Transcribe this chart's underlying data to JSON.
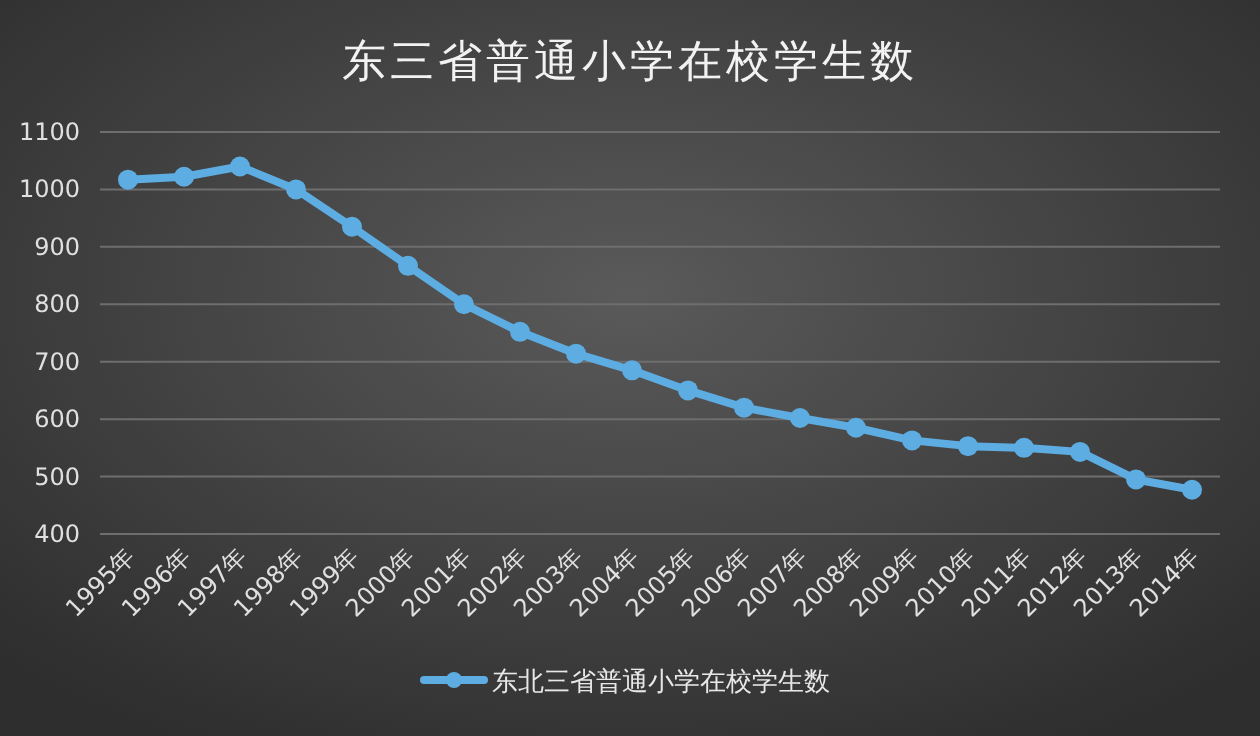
{
  "chart_data": {
    "type": "line",
    "title": "东三省普通小学在校学生数",
    "categories": [
      "1995年",
      "1996年",
      "1997年",
      "1998年",
      "1999年",
      "2000年",
      "2001年",
      "2002年",
      "2003年",
      "2004年",
      "2005年",
      "2006年",
      "2007年",
      "2008年",
      "2009年",
      "2010年",
      "2011年",
      "2012年",
      "2013年",
      "2014年"
    ],
    "series": [
      {
        "name": "东北三省普通小学在校学生数",
        "color": "#5dade2",
        "values": [
          1017,
          1022,
          1040,
          1000,
          935,
          867,
          800,
          752,
          714,
          685,
          650,
          620,
          602,
          585,
          563,
          553,
          550,
          543,
          495,
          477
        ]
      }
    ],
    "ylim": [
      400,
      1100
    ],
    "yticks": [
      400,
      500,
      600,
      700,
      800,
      900,
      1000,
      1100
    ],
    "grid": "y",
    "legend": "bottom",
    "marker": "circle",
    "line_style": "solid"
  }
}
